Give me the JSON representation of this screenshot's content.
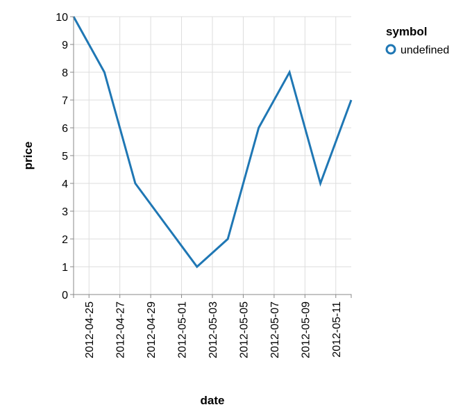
{
  "chart_data": {
    "type": "line",
    "x": [
      "2012-04-24",
      "2012-04-26",
      "2012-04-28",
      "2012-04-30",
      "2012-05-02",
      "2012-05-04",
      "2012-05-06",
      "2012-05-08",
      "2012-05-10",
      "2012-05-12"
    ],
    "series": [
      {
        "name": "undefined",
        "values": [
          10,
          8,
          4,
          2.5,
          1,
          2,
          6,
          8,
          4,
          7
        ],
        "color": "#1f77b4"
      }
    ],
    "xlabel": "date",
    "ylabel": "price",
    "ylim": [
      0,
      10
    ],
    "xlim": [
      "2012-04-24",
      "2012-05-12"
    ],
    "yticks": [
      0,
      1,
      2,
      3,
      4,
      5,
      6,
      7,
      8,
      9,
      10
    ],
    "xticks": [
      "2012-04-25",
      "2012-04-27",
      "2012-04-29",
      "2012-05-01",
      "2012-05-03",
      "2012-05-05",
      "2012-05-07",
      "2012-05-09",
      "2012-05-11"
    ],
    "grid": true,
    "legend": {
      "title": "symbol",
      "position": "top-right",
      "entries": [
        "undefined"
      ]
    }
  }
}
